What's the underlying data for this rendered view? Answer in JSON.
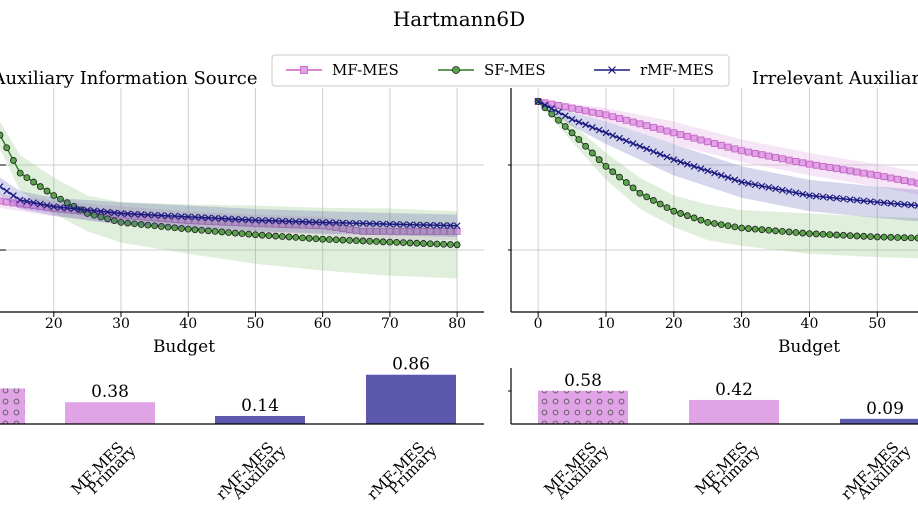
{
  "figure": {
    "title": "Hartmann6D"
  },
  "legend": {
    "placement": "top-center",
    "entries": [
      {
        "label": "MF-MES",
        "color": "#c864c8",
        "fill": "#e0a4e6",
        "marker": "square"
      },
      {
        "label": "SF-MES",
        "color": "#2e7a24",
        "fill": "#5aa34a",
        "marker": "circle"
      },
      {
        "label": "rMF-MES",
        "color": "#1a1a80",
        "fill": "#1a1a80",
        "marker": "x"
      }
    ]
  },
  "chart_data": [
    {
      "type": "line",
      "title": "Auxiliary Information Source",
      "xlabel": "Budget",
      "ylabel": "",
      "xlim": [
        12,
        84
      ],
      "ylim": [
        0,
        1
      ],
      "yscale": "log",
      "xticks": [
        20,
        30,
        40,
        50,
        60,
        70,
        80
      ],
      "grid": true,
      "series": [
        {
          "name": "MF-MES",
          "color": "#c864c8",
          "x": [
            12,
            20,
            30,
            40,
            50,
            60,
            66,
            70,
            80
          ],
          "y": [
            0.495,
            0.462,
            0.432,
            0.408,
            0.395,
            0.385,
            0.36,
            0.36,
            0.36
          ],
          "band": [
            0.03,
            0.035,
            0.04,
            0.04,
            0.04,
            0.04,
            0.04,
            0.04,
            0.04
          ]
        },
        {
          "name": "SF-MES",
          "color": "#2e7a24",
          "x": [
            12,
            15,
            20,
            25,
            30,
            40,
            50,
            60,
            70,
            80
          ],
          "y": [
            0.79,
            0.62,
            0.52,
            0.44,
            0.4,
            0.37,
            0.345,
            0.325,
            0.312,
            0.3
          ],
          "band": [
            0.06,
            0.08,
            0.08,
            0.08,
            0.09,
            0.11,
            0.13,
            0.14,
            0.15,
            0.15
          ]
        },
        {
          "name": "rMF-MES",
          "color": "#1a1a80",
          "x": [
            12,
            15,
            20,
            25,
            30,
            40,
            50,
            60,
            70,
            80
          ],
          "y": [
            0.56,
            0.5,
            0.47,
            0.455,
            0.44,
            0.425,
            0.41,
            0.4,
            0.392,
            0.385
          ],
          "band": [
            0.04,
            0.04,
            0.04,
            0.045,
            0.05,
            0.05,
            0.05,
            0.05,
            0.05,
            0.05
          ]
        }
      ]
    },
    {
      "type": "line",
      "title": "Irrelevant Auxiliar",
      "xlabel": "Budget",
      "ylabel": "",
      "xlim": [
        -4,
        56
      ],
      "ylim": [
        0,
        1
      ],
      "yscale": "log",
      "xticks": [
        0,
        10,
        20,
        30,
        40,
        50
      ],
      "grid": true,
      "series": [
        {
          "name": "MF-MES",
          "color": "#c864c8",
          "x": [
            0,
            10,
            20,
            30,
            40,
            50,
            56
          ],
          "y": [
            0.94,
            0.88,
            0.8,
            0.72,
            0.66,
            0.61,
            0.575
          ],
          "band": [
            0.01,
            0.03,
            0.05,
            0.05,
            0.05,
            0.05,
            0.05
          ]
        },
        {
          "name": "SF-MES",
          "color": "#2e7a24",
          "x": [
            0,
            5,
            10,
            15,
            20,
            25,
            30,
            40,
            50,
            56
          ],
          "y": [
            0.94,
            0.8,
            0.65,
            0.53,
            0.45,
            0.4,
            0.375,
            0.35,
            0.335,
            0.33
          ],
          "band": [
            0.01,
            0.04,
            0.06,
            0.07,
            0.07,
            0.08,
            0.08,
            0.09,
            0.09,
            0.09
          ]
        },
        {
          "name": "rMF-MES",
          "color": "#1a1a80",
          "x": [
            0,
            5,
            10,
            20,
            30,
            40,
            50,
            56
          ],
          "y": [
            0.94,
            0.86,
            0.8,
            0.68,
            0.58,
            0.52,
            0.49,
            0.475
          ],
          "band": [
            0.01,
            0.03,
            0.05,
            0.07,
            0.07,
            0.07,
            0.07,
            0.07
          ]
        }
      ]
    },
    {
      "type": "bar",
      "categories": [
        "",
        "MF-MES Primary",
        "rMF-MES Auxiliary",
        "rMF-MES Primary"
      ],
      "values": [
        0.62,
        0.38,
        0.14,
        0.86
      ],
      "value_labels": [
        "",
        "0.38",
        "0.14",
        "0.86"
      ],
      "colors": [
        "#e0a4e6",
        "#e0a4e6",
        "#5b58ae",
        "#5b58ae"
      ],
      "hatched": [
        true,
        false,
        false,
        false
      ],
      "ylim": [
        0,
        1
      ]
    },
    {
      "type": "bar",
      "categories": [
        "MF-MES Auxiliary",
        "MF-MES Primary",
        "rMF-MES Auxiliary"
      ],
      "values": [
        0.58,
        0.42,
        0.09
      ],
      "value_labels": [
        "0.58",
        "0.42",
        "0.09"
      ],
      "colors": [
        "#e0a4e6",
        "#e0a4e6",
        "#5b58ae"
      ],
      "hatched": [
        true,
        false,
        false
      ],
      "ylim": [
        0,
        1
      ]
    }
  ]
}
